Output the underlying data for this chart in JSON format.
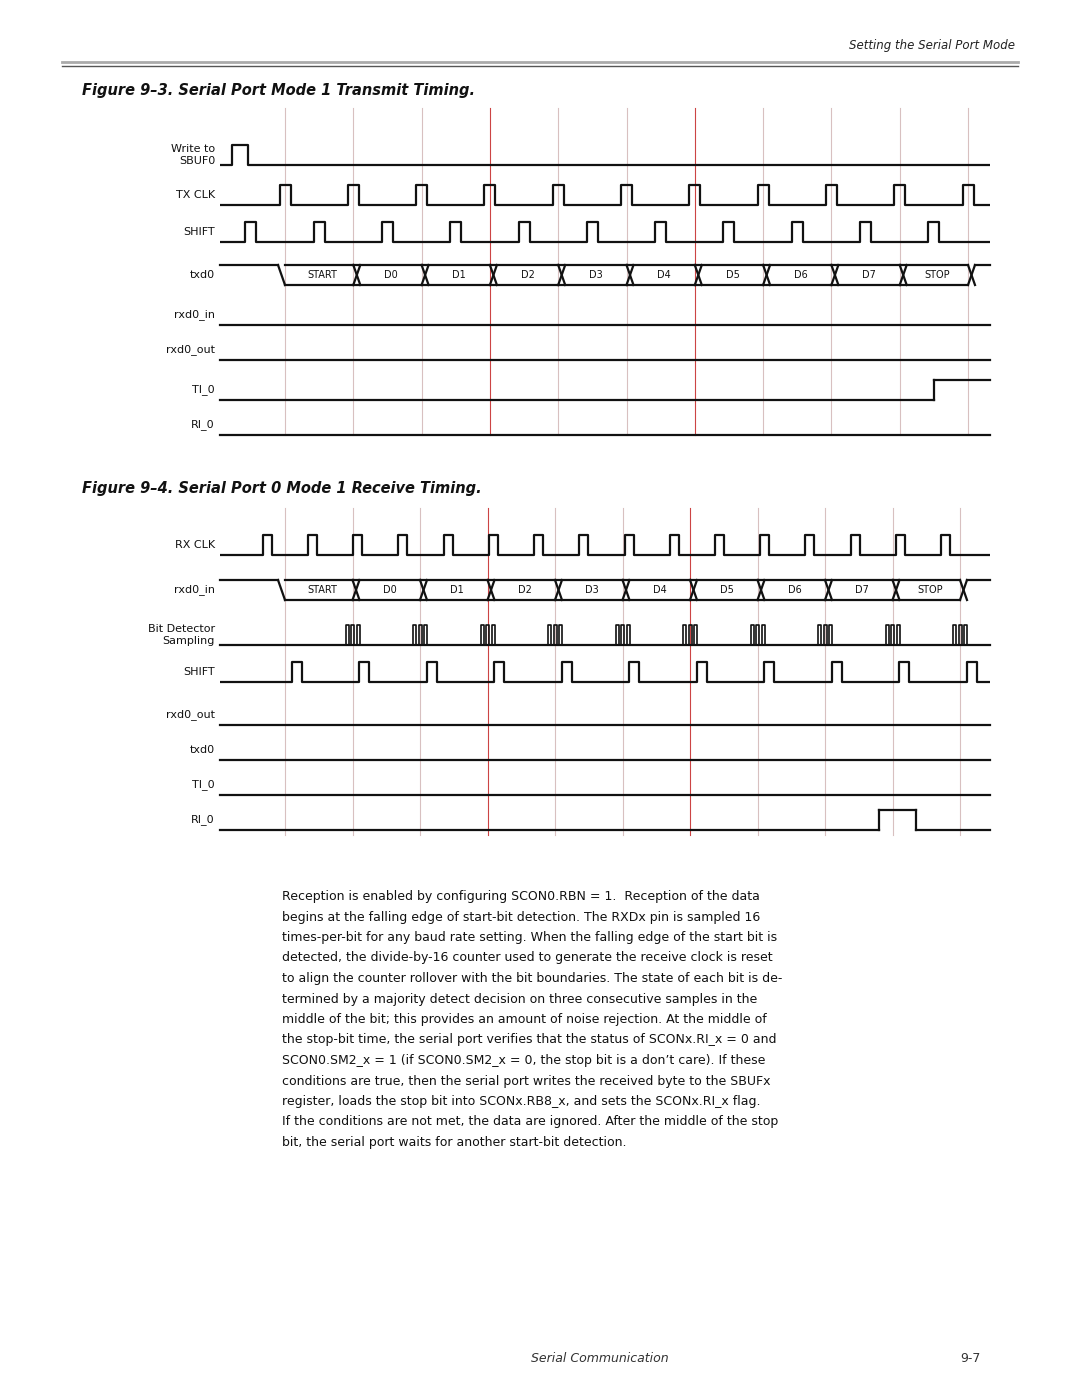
{
  "page_bg": "#ffffff",
  "fig_width": 10.8,
  "fig_height": 13.97,
  "header_text": "Setting the Serial Port Mode",
  "fig1_title": "Figure 9–3. Serial Port Mode 1 Transmit Timing.",
  "fig2_title": "Figure 9–4. Serial Port 0 Mode 1 Receive Timing.",
  "footer_left": "Serial Communication",
  "footer_right": "9-7",
  "body_text": "Reception is enabled by configuring SCON0.RBN = 1.  Reception of the data\nbegins at the falling edge of start-bit detection. The RXDx pin is sampled 16\ntimes-per-bit for any baud rate setting. When the falling edge of the start bit is\ndetected, the divide-by-16 counter used to generate the receive clock is reset\nto align the counter rollover with the bit boundaries. The state of each bit is de-\ntermined by a majority detect decision on three consecutive samples in the\nmiddle of the bit; this provides an amount of noise rejection. At the middle of\nthe stop-bit time, the serial port verifies that the status of SCONx.RI_x = 0 and\nSCON0.SM2_x = 1 (if SCON0.SM2_x = 0, the stop bit is a don’t care). If these\nconditions are true, then the serial port writes the received byte to the SBUFx\nregister, loads the stop bit into SCONx.RB8_x, and sets the SCONx.RI_x flag.\nIf the conditions are not met, the data are ignored. After the middle of the stop\nbit, the serial port waits for another start-bit detection.",
  "grid_color": "#d8c0c0",
  "red_grid_color": "#cc4444",
  "signal_lw": 1.6,
  "grid_lw": 0.8,
  "label_fontsize": 8.0,
  "title_fontsize": 10.5,
  "body_fontsize": 9.0
}
